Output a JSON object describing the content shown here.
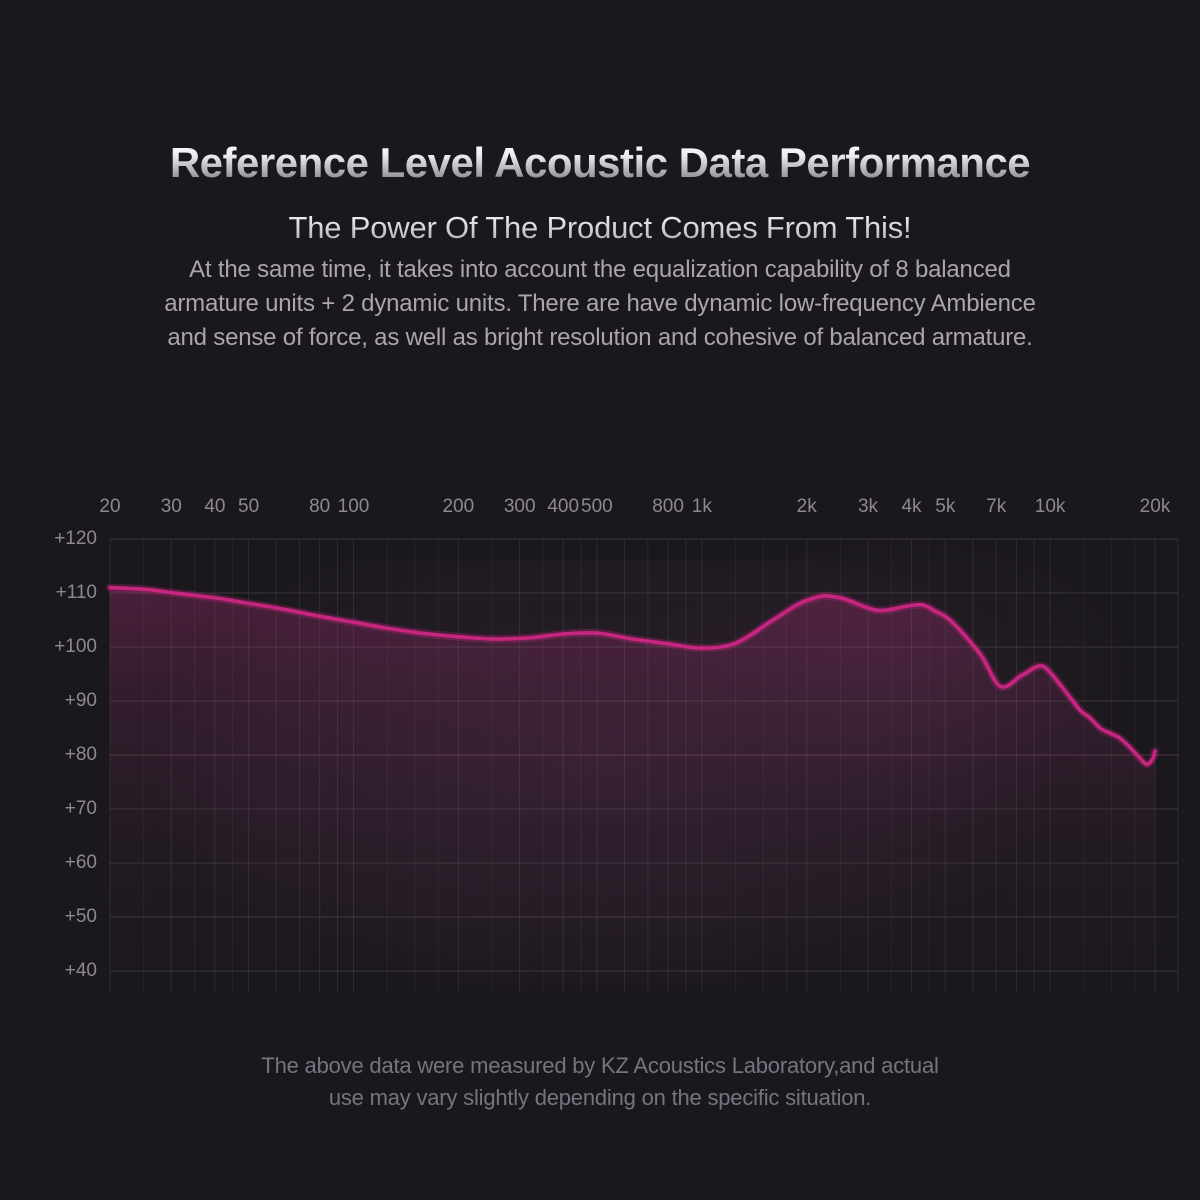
{
  "page": {
    "background": "#1a181c"
  },
  "header": {
    "title": "Reference Level Acoustic Data Performance",
    "subtitle": "The Power Of The Product Comes From This!",
    "description_lines": [
      "At the same time, it takes into account the equalization capability of 8 balanced",
      "armature units + 2 dynamic units. There are have dynamic low-frequency Ambience",
      "and sense of force, as well as bright resolution and cohesive of balanced armature."
    ]
  },
  "footer": {
    "note_lines": [
      "The above data were measured by KZ Acoustics Laboratory,and actual",
      "use may vary slightly depending on the specific situation."
    ]
  },
  "chart_data": {
    "type": "area",
    "title": "",
    "xlabel": "",
    "ylabel": "",
    "legend": false,
    "grid": true,
    "x_axis": {
      "scale": "log",
      "unit": "Hz",
      "min": 20,
      "max": 20000,
      "tick_labels": [
        {
          "value": 20,
          "label": "20"
        },
        {
          "value": 30,
          "label": "30"
        },
        {
          "value": 40,
          "label": "40"
        },
        {
          "value": 50,
          "label": "50"
        },
        {
          "value": 80,
          "label": "80"
        },
        {
          "value": 100,
          "label": "100"
        },
        {
          "value": 200,
          "label": "200"
        },
        {
          "value": 300,
          "label": "300"
        },
        {
          "value": 400,
          "label": "400"
        },
        {
          "value": 500,
          "label": "500"
        },
        {
          "value": 800,
          "label": "800"
        },
        {
          "value": 1000,
          "label": "1k"
        },
        {
          "value": 2000,
          "label": "2k"
        },
        {
          "value": 3000,
          "label": "3k"
        },
        {
          "value": 4000,
          "label": "4k"
        },
        {
          "value": 5000,
          "label": "5k"
        },
        {
          "value": 7000,
          "label": "7k"
        },
        {
          "value": 10000,
          "label": "10k"
        },
        {
          "value": 20000,
          "label": "20k"
        }
      ],
      "gridlines_major": [
        20,
        30,
        40,
        50,
        60,
        70,
        80,
        90,
        100,
        200,
        300,
        400,
        500,
        600,
        700,
        800,
        900,
        1000,
        2000,
        3000,
        4000,
        5000,
        6000,
        7000,
        8000,
        9000,
        10000,
        20000
      ],
      "gridlines_minor": [
        25,
        35,
        45,
        125,
        150,
        175,
        250,
        350,
        450,
        1250,
        1500,
        1750,
        2500,
        3500,
        4500,
        12500,
        15000,
        17500
      ]
    },
    "y_axis": {
      "unit": "dB",
      "min": 40,
      "max": 120,
      "step": 10,
      "highlight_gridline": 80,
      "tick_labels": [
        {
          "value": 120,
          "label": "+120"
        },
        {
          "value": 110,
          "label": "+110"
        },
        {
          "value": 100,
          "label": "+100"
        },
        {
          "value": 90,
          "label": "+90"
        },
        {
          "value": 80,
          "label": "+80"
        },
        {
          "value": 70,
          "label": "+70"
        },
        {
          "value": 60,
          "label": "+60"
        },
        {
          "value": 50,
          "label": "+50"
        },
        {
          "value": 40,
          "label": "+40"
        }
      ]
    },
    "series": [
      {
        "name": "frequency_response",
        "color": "#c62680",
        "points_hz_db": [
          [
            20,
            111
          ],
          [
            25,
            110.7
          ],
          [
            30,
            110.1
          ],
          [
            40,
            109.1
          ],
          [
            50,
            108.1
          ],
          [
            63,
            107.0
          ],
          [
            80,
            105.7
          ],
          [
            100,
            104.6
          ],
          [
            125,
            103.5
          ],
          [
            160,
            102.5
          ],
          [
            200,
            101.9
          ],
          [
            250,
            101.5
          ],
          [
            320,
            101.7
          ],
          [
            400,
            102.4
          ],
          [
            500,
            102.6
          ],
          [
            630,
            101.5
          ],
          [
            800,
            100.6
          ],
          [
            1000,
            99.8
          ],
          [
            1250,
            100.7
          ],
          [
            1600,
            105.0
          ],
          [
            1900,
            108.0
          ],
          [
            2200,
            109.4
          ],
          [
            2400,
            109.3
          ],
          [
            2600,
            108.8
          ],
          [
            3200,
            106.8
          ],
          [
            3900,
            107.6
          ],
          [
            4300,
            107.8
          ],
          [
            4700,
            106.6
          ],
          [
            5200,
            104.8
          ],
          [
            6300,
            98.7
          ],
          [
            7200,
            92.7
          ],
          [
            8300,
            94.8
          ],
          [
            9300,
            96.5
          ],
          [
            10000,
            95.3
          ],
          [
            11400,
            90.7
          ],
          [
            12200,
            88.3
          ],
          [
            13000,
            86.9
          ],
          [
            13900,
            85.0
          ],
          [
            14800,
            84.1
          ],
          [
            15800,
            83.2
          ],
          [
            16900,
            81.5
          ],
          [
            18100,
            79.4
          ],
          [
            18900,
            78.3
          ],
          [
            19400,
            78.7
          ],
          [
            19800,
            79.6
          ],
          [
            20000,
            80.7
          ]
        ]
      }
    ],
    "colors": {
      "line": "#c62680",
      "line_glow": "rgba(196,38,124,0.30)",
      "fill_top": "rgba(210,48,140,0.34)",
      "fill_mid": "rgba(185,55,135,0.16)",
      "fill_low": "rgba(160,60,130,0.06)",
      "fill_bottom": "rgba(160,60,130,0)",
      "grid_h": "rgba(255,255,255,0.12)",
      "grid_h_highlight": "rgba(232,130,190,0.28)",
      "grid_v_major": "rgba(255,255,255,0.085)",
      "grid_v_minor": "rgba(255,255,255,0.05)",
      "tick_text": "#8d8892"
    }
  }
}
